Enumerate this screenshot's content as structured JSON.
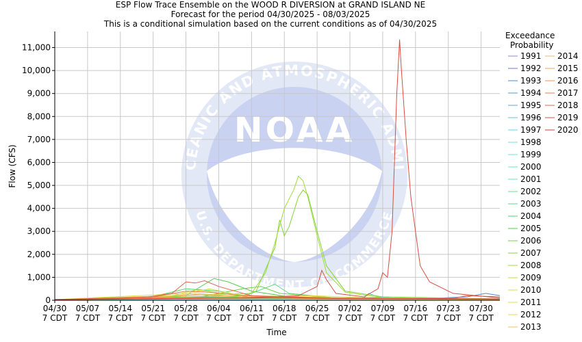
{
  "chart_data": {
    "type": "line",
    "title": [
      "ESP Flow Trace Ensemble on the WOOD R DIVERSION at GRAND ISLAND NE",
      "Forecast for the period 04/30/2025 - 08/03/2025",
      "This is a conditional simulation based on the current conditions as of 04/30/2025"
    ],
    "xlabel": "Time",
    "ylabel": "Flow (CFS)",
    "x_range": [
      "04/30",
      "08/03"
    ],
    "ylim": [
      0,
      11700
    ],
    "y_ticks": [
      0,
      1000,
      2000,
      3000,
      4000,
      5000,
      6000,
      7000,
      8000,
      9000,
      10000,
      11000
    ],
    "y_tick_labels": [
      "0",
      "1,000",
      "2,000",
      "3,000",
      "4,000",
      "5,000",
      "6,000",
      "7,000",
      "8,000",
      "9,000",
      "10,000",
      "11,000"
    ],
    "x_ticks": [
      {
        "day": 0,
        "date": "04/30",
        "time": "7 CDT"
      },
      {
        "day": 7,
        "date": "05/07",
        "time": "7 CDT"
      },
      {
        "day": 14,
        "date": "05/14",
        "time": "7 CDT"
      },
      {
        "day": 21,
        "date": "05/21",
        "time": "7 CDT"
      },
      {
        "day": 28,
        "date": "05/28",
        "time": "7 CDT"
      },
      {
        "day": 35,
        "date": "06/04",
        "time": "7 CDT"
      },
      {
        "day": 42,
        "date": "06/11",
        "time": "7 CDT"
      },
      {
        "day": 49,
        "date": "06/18",
        "time": "7 CDT"
      },
      {
        "day": 56,
        "date": "06/25",
        "time": "7 CDT"
      },
      {
        "day": 63,
        "date": "07/02",
        "time": "7 CDT"
      },
      {
        "day": 70,
        "date": "07/09",
        "time": "7 CDT"
      },
      {
        "day": 77,
        "date": "07/16",
        "time": "7 CDT"
      },
      {
        "day": 84,
        "date": "07/23",
        "time": "7 CDT"
      },
      {
        "day": 91,
        "date": "07/30",
        "time": "7 CDT"
      }
    ],
    "grid": true,
    "legend_position": "right",
    "legend_title": [
      "Exceedance",
      "Probability"
    ],
    "watermark": {
      "text": "NOAA",
      "ring_text": "NATIONAL OCEANIC AND ATMOSPHERIC ADMINISTRATION",
      "bottom_text": "U.S. DEPARTMENT OF COMMERCE"
    },
    "series": [
      {
        "name": "1991",
        "color": "#8c84e0",
        "points": [
          [
            0,
            40
          ],
          [
            30,
            60
          ],
          [
            60,
            50
          ],
          [
            95,
            40
          ]
        ]
      },
      {
        "name": "1992",
        "color": "#6a74d8",
        "points": [
          [
            0,
            30
          ],
          [
            40,
            50
          ],
          [
            70,
            40
          ],
          [
            95,
            30
          ]
        ]
      },
      {
        "name": "1993",
        "color": "#4f86d0",
        "points": [
          [
            0,
            40
          ],
          [
            40,
            60
          ],
          [
            80,
            80
          ],
          [
            88,
            150
          ],
          [
            92,
            300
          ],
          [
            95,
            200
          ]
        ]
      },
      {
        "name": "1994",
        "color": "#4d98cc",
        "points": [
          [
            0,
            30
          ],
          [
            14,
            50
          ],
          [
            40,
            40
          ],
          [
            95,
            40
          ]
        ]
      },
      {
        "name": "1995",
        "color": "#55a8d6",
        "points": [
          [
            0,
            30
          ],
          [
            30,
            150
          ],
          [
            50,
            100
          ],
          [
            75,
            60
          ],
          [
            95,
            60
          ]
        ]
      },
      {
        "name": "1996",
        "color": "#5cc0e0",
        "points": [
          [
            0,
            30
          ],
          [
            60,
            40
          ],
          [
            66,
            100
          ],
          [
            67,
            300
          ],
          [
            69,
            150
          ],
          [
            75,
            60
          ],
          [
            95,
            50
          ]
        ]
      },
      {
        "name": "1997",
        "color": "#60d0e8",
        "points": [
          [
            0,
            30
          ],
          [
            40,
            40
          ],
          [
            70,
            40
          ],
          [
            95,
            30
          ]
        ]
      },
      {
        "name": "1998",
        "color": "#6fe0e0",
        "points": [
          [
            0,
            30
          ],
          [
            45,
            80
          ],
          [
            60,
            60
          ],
          [
            95,
            40
          ]
        ]
      },
      {
        "name": "1999",
        "color": "#6be6d0",
        "points": [
          [
            0,
            30
          ],
          [
            40,
            60
          ],
          [
            95,
            30
          ]
        ]
      },
      {
        "name": "2000",
        "color": "#66e8bd",
        "points": [
          [
            0,
            30
          ],
          [
            30,
            80
          ],
          [
            60,
            50
          ],
          [
            95,
            30
          ]
        ]
      },
      {
        "name": "2001",
        "color": "#5fe8a8",
        "points": [
          [
            0,
            30
          ],
          [
            50,
            60
          ],
          [
            95,
            40
          ]
        ]
      },
      {
        "name": "2002",
        "color": "#5ee296",
        "points": [
          [
            0,
            30
          ],
          [
            35,
            100
          ],
          [
            60,
            60
          ],
          [
            95,
            40
          ]
        ]
      },
      {
        "name": "2003",
        "color": "#58dc84",
        "points": [
          [
            0,
            30
          ],
          [
            40,
            150
          ],
          [
            47,
            700
          ],
          [
            50,
            300
          ],
          [
            60,
            100
          ],
          [
            95,
            50
          ]
        ]
      },
      {
        "name": "2004",
        "color": "#4cd468",
        "points": [
          [
            0,
            30
          ],
          [
            20,
            120
          ],
          [
            28,
            500
          ],
          [
            35,
            400
          ],
          [
            42,
            120
          ],
          [
            60,
            60
          ],
          [
            95,
            40
          ]
        ]
      },
      {
        "name": "2005",
        "color": "#54cc50",
        "points": [
          [
            0,
            30
          ],
          [
            28,
            200
          ],
          [
            34,
            950
          ],
          [
            37,
            800
          ],
          [
            42,
            400
          ],
          [
            50,
            150
          ],
          [
            70,
            60
          ],
          [
            95,
            40
          ]
        ]
      },
      {
        "name": "2006",
        "color": "#6cd040",
        "points": [
          [
            0,
            30
          ],
          [
            30,
            100
          ],
          [
            40,
            500
          ],
          [
            44,
            600
          ],
          [
            48,
            300
          ],
          [
            60,
            100
          ],
          [
            95,
            40
          ]
        ]
      },
      {
        "name": "2007",
        "color": "#84d63a",
        "points": [
          [
            0,
            30
          ],
          [
            40,
            200
          ],
          [
            43,
            400
          ],
          [
            47,
            2300
          ],
          [
            48,
            3500
          ],
          [
            49,
            2800
          ],
          [
            50,
            3200
          ],
          [
            52,
            4500
          ],
          [
            53,
            4800
          ],
          [
            54,
            4600
          ],
          [
            56,
            3000
          ],
          [
            58,
            1500
          ],
          [
            62,
            400
          ],
          [
            70,
            150
          ],
          [
            95,
            60
          ]
        ]
      },
      {
        "name": "2008",
        "color": "#a0dc38",
        "points": [
          [
            0,
            30
          ],
          [
            42,
            300
          ],
          [
            45,
            1200
          ],
          [
            47,
            2500
          ],
          [
            49,
            4000
          ],
          [
            51,
            4800
          ],
          [
            52,
            5400
          ],
          [
            53,
            5200
          ],
          [
            54,
            4500
          ],
          [
            56,
            2800
          ],
          [
            58,
            1200
          ],
          [
            62,
            350
          ],
          [
            70,
            100
          ],
          [
            95,
            60
          ]
        ]
      },
      {
        "name": "2009",
        "color": "#bce040",
        "points": [
          [
            0,
            30
          ],
          [
            25,
            200
          ],
          [
            30,
            450
          ],
          [
            36,
            300
          ],
          [
            45,
            150
          ],
          [
            60,
            80
          ],
          [
            95,
            40
          ]
        ]
      },
      {
        "name": "2010",
        "color": "#d4e048",
        "points": [
          [
            0,
            30
          ],
          [
            28,
            300
          ],
          [
            33,
            500
          ],
          [
            40,
            200
          ],
          [
            55,
            150
          ],
          [
            65,
            80
          ],
          [
            95,
            50
          ]
        ]
      },
      {
        "name": "2011",
        "color": "#e6dc50",
        "points": [
          [
            0,
            30
          ],
          [
            35,
            100
          ],
          [
            55,
            200
          ],
          [
            65,
            120
          ],
          [
            95,
            50
          ]
        ]
      },
      {
        "name": "2012",
        "color": "#f0d058",
        "points": [
          [
            0,
            30
          ],
          [
            30,
            60
          ],
          [
            60,
            40
          ],
          [
            95,
            30
          ]
        ]
      },
      {
        "name": "2013",
        "color": "#f2c260",
        "points": [
          [
            0,
            30
          ],
          [
            20,
            100
          ],
          [
            30,
            300
          ],
          [
            40,
            150
          ],
          [
            60,
            60
          ],
          [
            95,
            40
          ]
        ]
      },
      {
        "name": "2014",
        "color": "#f4b460",
        "points": [
          [
            0,
            30
          ],
          [
            25,
            80
          ],
          [
            40,
            120
          ],
          [
            60,
            60
          ],
          [
            95,
            40
          ]
        ]
      },
      {
        "name": "2015",
        "color": "#f0a050",
        "points": [
          [
            0,
            30
          ],
          [
            25,
            150
          ],
          [
            30,
            250
          ],
          [
            40,
            150
          ],
          [
            70,
            80
          ],
          [
            95,
            50
          ]
        ]
      },
      {
        "name": "2016",
        "color": "#f09048",
        "points": [
          [
            0,
            30
          ],
          [
            30,
            120
          ],
          [
            45,
            100
          ],
          [
            65,
            60
          ],
          [
            95,
            40
          ]
        ]
      },
      {
        "name": "2017",
        "color": "#e87848",
        "points": [
          [
            0,
            30
          ],
          [
            20,
            100
          ],
          [
            28,
            400
          ],
          [
            33,
            350
          ],
          [
            40,
            200
          ],
          [
            60,
            80
          ],
          [
            95,
            40
          ]
        ]
      },
      {
        "name": "2018",
        "color": "#e06048",
        "points": [
          [
            0,
            30
          ],
          [
            20,
            150
          ],
          [
            25,
            300
          ],
          [
            28,
            800
          ],
          [
            30,
            750
          ],
          [
            32,
            850
          ],
          [
            35,
            600
          ],
          [
            42,
            200
          ],
          [
            60,
            80
          ],
          [
            85,
            80
          ],
          [
            88,
            200
          ],
          [
            95,
            150
          ]
        ]
      },
      {
        "name": "2019",
        "color": "#d84c40",
        "points": [
          [
            0,
            30
          ],
          [
            40,
            100
          ],
          [
            52,
            200
          ],
          [
            56,
            600
          ],
          [
            57,
            1300
          ],
          [
            58,
            900
          ],
          [
            60,
            300
          ],
          [
            66,
            150
          ],
          [
            69,
            500
          ],
          [
            70,
            1200
          ],
          [
            71,
            1000
          ],
          [
            72,
            3000
          ],
          [
            73,
            9000
          ],
          [
            73.6,
            11350
          ],
          [
            74,
            10000
          ],
          [
            75,
            7000
          ],
          [
            76,
            4500
          ],
          [
            77,
            3000
          ],
          [
            78,
            1500
          ],
          [
            80,
            800
          ],
          [
            85,
            300
          ],
          [
            95,
            100
          ]
        ]
      },
      {
        "name": "2020",
        "color": "#d03c38",
        "points": [
          [
            0,
            30
          ],
          [
            30,
            80
          ],
          [
            50,
            100
          ],
          [
            60,
            80
          ],
          [
            68,
            100
          ],
          [
            70,
            80
          ],
          [
            95,
            60
          ]
        ]
      }
    ]
  }
}
